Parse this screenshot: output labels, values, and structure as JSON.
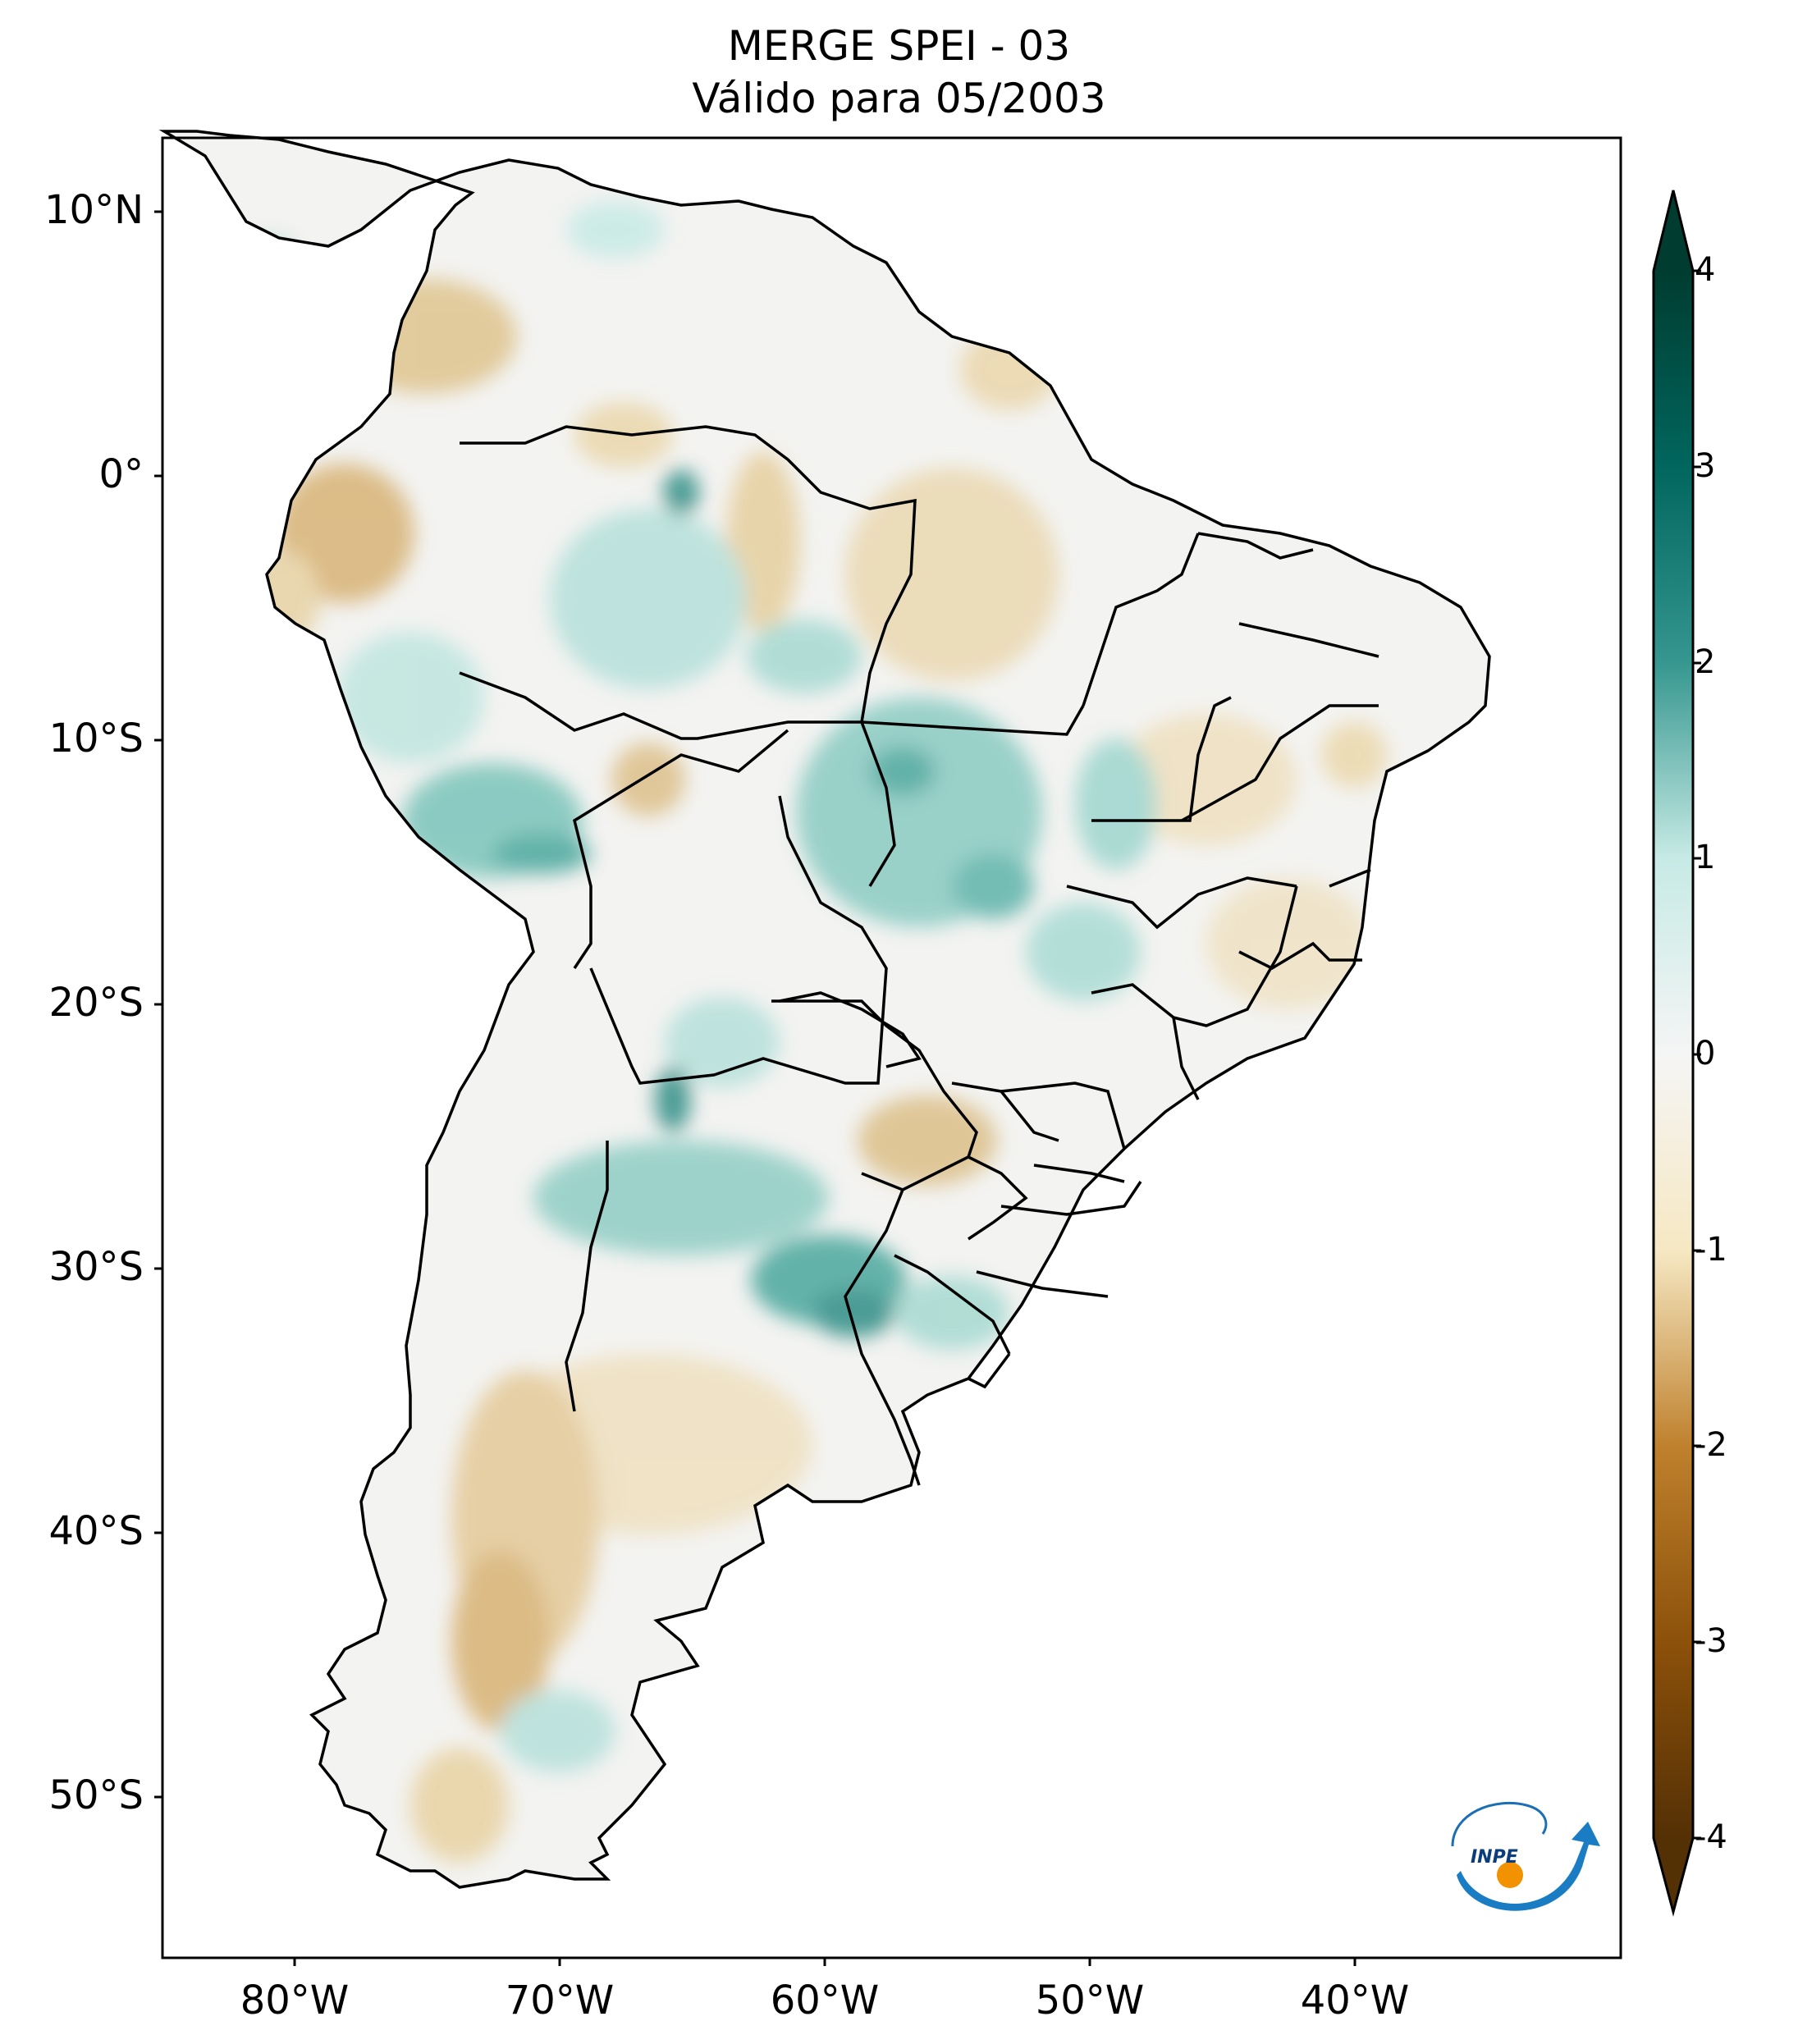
{
  "title": {
    "line1": "MERGE   SPEI - 03",
    "line2": "Válido para 05/2003"
  },
  "map": {
    "type": "choropleth-raster",
    "region": "South America",
    "projection": "PlateCarree",
    "lon_range": [
      -85,
      -30
    ],
    "lat_range": [
      -56,
      12.5
    ],
    "lat_ticks": [
      {
        "value": 10,
        "label": "10°N"
      },
      {
        "value": 0,
        "label": "0°"
      },
      {
        "value": -10,
        "label": "10°S"
      },
      {
        "value": -20,
        "label": "20°S"
      },
      {
        "value": -30,
        "label": "30°S"
      },
      {
        "value": -40,
        "label": "40°S"
      },
      {
        "value": -50,
        "label": "50°S"
      }
    ],
    "lon_ticks": [
      {
        "value": -80,
        "label": "80°W"
      },
      {
        "value": -70,
        "label": "70°W"
      },
      {
        "value": -60,
        "label": "60°W"
      },
      {
        "value": -50,
        "label": "50°W"
      },
      {
        "value": -40,
        "label": "40°W"
      }
    ],
    "boundaries": "countries and Brazilian states",
    "logo": "INPE"
  },
  "colorbar": {
    "colormap": "BrBG",
    "range": [
      -4,
      4
    ],
    "extend": "both",
    "ticks": [
      "4",
      "3",
      "2",
      "1",
      "0",
      "-1",
      "-2",
      "-3",
      "-4"
    ],
    "colors": {
      "min": "#543005",
      "dry": "#bf812d",
      "light_dry": "#f6e8c3",
      "neutral": "#f5f5f5",
      "light_wet": "#c7eae5",
      "wet": "#35978f",
      "max": "#003c30"
    }
  }
}
